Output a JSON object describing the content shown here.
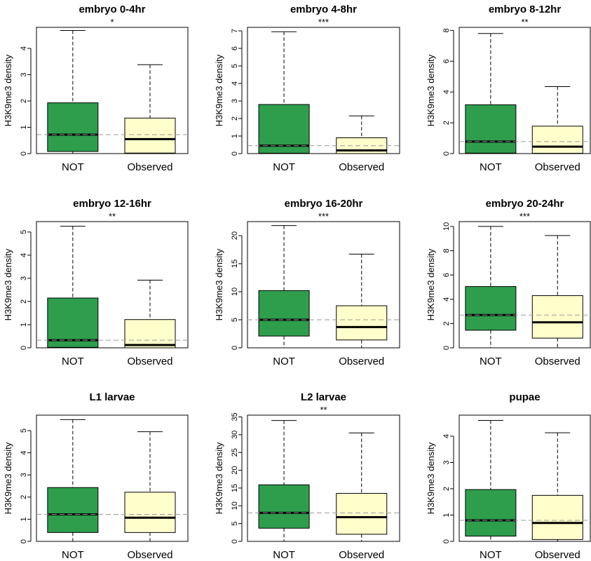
{
  "colors": {
    "not": "#2e9e4d",
    "observed": "#ffffcc",
    "reference_line": "#999999"
  },
  "chart_data": [
    {
      "type": "box",
      "title": "embryo 0-4hr",
      "significance": "*",
      "ylabel": "H3K9me3 density",
      "categories": [
        "NOT",
        "Observed"
      ],
      "yticks": [
        0,
        1,
        2,
        3,
        4
      ],
      "ylim": [
        0,
        4.8
      ],
      "reference_line": 0.72,
      "boxes": [
        {
          "name": "NOT",
          "min": 0,
          "q1": 0.08,
          "median": 0.72,
          "q3": 1.93,
          "max": 4.68
        },
        {
          "name": "Observed",
          "min": 0,
          "q1": 0.02,
          "median": 0.55,
          "q3": 1.35,
          "max": 3.38
        }
      ]
    },
    {
      "type": "box",
      "title": "embryo 4-8hr",
      "significance": "***",
      "ylabel": "H3K9me3 density",
      "categories": [
        "NOT",
        "Observed"
      ],
      "yticks": [
        0,
        1,
        2,
        3,
        4,
        5,
        6,
        7
      ],
      "ylim": [
        0,
        7.2
      ],
      "reference_line": 0.45,
      "boxes": [
        {
          "name": "NOT",
          "min": 0,
          "q1": 0.02,
          "median": 0.45,
          "q3": 2.8,
          "max": 6.95
        },
        {
          "name": "Observed",
          "min": 0,
          "q1": 0.0,
          "median": 0.18,
          "q3": 0.9,
          "max": 2.15
        }
      ]
    },
    {
      "type": "box",
      "title": "embryo 8-12hr",
      "significance": "**",
      "ylabel": "H3K9me3 density",
      "categories": [
        "NOT",
        "Observed"
      ],
      "yticks": [
        0,
        2,
        4,
        6,
        8
      ],
      "ylim": [
        0,
        8.2
      ],
      "reference_line": 0.78,
      "boxes": [
        {
          "name": "NOT",
          "min": 0,
          "q1": 0.03,
          "median": 0.78,
          "q3": 3.17,
          "max": 7.8
        },
        {
          "name": "Observed",
          "min": 0,
          "q1": 0.02,
          "median": 0.45,
          "q3": 1.78,
          "max": 4.35
        }
      ]
    },
    {
      "type": "box",
      "title": "embryo 12-16hr",
      "significance": "**",
      "ylabel": "H3K9me3 density",
      "categories": [
        "NOT",
        "Observed"
      ],
      "yticks": [
        0,
        1,
        2,
        3,
        4,
        5
      ],
      "ylim": [
        0,
        5.45
      ],
      "reference_line": 0.33,
      "boxes": [
        {
          "name": "NOT",
          "min": 0,
          "q1": 0.02,
          "median": 0.33,
          "q3": 2.15,
          "max": 5.25
        },
        {
          "name": "Observed",
          "min": 0,
          "q1": 0.0,
          "median": 0.12,
          "q3": 1.22,
          "max": 2.92
        }
      ]
    },
    {
      "type": "box",
      "title": "embryo 16-20hr",
      "significance": "***",
      "ylabel": "H3K9me3 density",
      "categories": [
        "NOT",
        "Observed"
      ],
      "yticks": [
        0,
        5,
        10,
        15,
        20
      ],
      "ylim": [
        0,
        22.5
      ],
      "reference_line": 5.0,
      "boxes": [
        {
          "name": "NOT",
          "min": 0,
          "q1": 2.1,
          "median": 5.0,
          "q3": 10.2,
          "max": 21.8
        },
        {
          "name": "Observed",
          "min": 0,
          "q1": 1.4,
          "median": 3.7,
          "q3": 7.5,
          "max": 16.7
        }
      ]
    },
    {
      "type": "box",
      "title": "embryo 20-24hr",
      "significance": "***",
      "ylabel": "H3K9me3 density",
      "categories": [
        "NOT",
        "Observed"
      ],
      "yticks": [
        0,
        2,
        4,
        6,
        8,
        10
      ],
      "ylim": [
        0,
        10.4
      ],
      "reference_line": 2.7,
      "boxes": [
        {
          "name": "NOT",
          "min": 0,
          "q1": 1.45,
          "median": 2.7,
          "q3": 5.05,
          "max": 10.0
        },
        {
          "name": "Observed",
          "min": 0,
          "q1": 0.8,
          "median": 2.1,
          "q3": 4.3,
          "max": 9.25
        }
      ]
    },
    {
      "type": "box",
      "title": "L1 larvae",
      "significance": "",
      "ylabel": "H3K9me3 density",
      "categories": [
        "NOT",
        "Observed"
      ],
      "yticks": [
        0,
        1,
        2,
        3,
        4,
        5
      ],
      "ylim": [
        0,
        5.7
      ],
      "reference_line": 1.22,
      "boxes": [
        {
          "name": "NOT",
          "min": 0,
          "q1": 0.4,
          "median": 1.22,
          "q3": 2.43,
          "max": 5.5
        },
        {
          "name": "Observed",
          "min": 0,
          "q1": 0.4,
          "median": 1.07,
          "q3": 2.22,
          "max": 4.95
        }
      ]
    },
    {
      "type": "box",
      "title": "L2 larvae",
      "significance": "**",
      "ylabel": "H3K9me3 density",
      "categories": [
        "NOT",
        "Observed"
      ],
      "yticks": [
        0,
        5,
        10,
        15,
        20,
        25,
        30,
        35
      ],
      "ylim": [
        0,
        35.5
      ],
      "reference_line": 8.0,
      "boxes": [
        {
          "name": "NOT",
          "min": 0,
          "q1": 3.7,
          "median": 8.0,
          "q3": 15.9,
          "max": 34.0
        },
        {
          "name": "Observed",
          "min": 0,
          "q1": 2.0,
          "median": 6.8,
          "q3": 13.5,
          "max": 30.5
        }
      ]
    },
    {
      "type": "box",
      "title": "pupae",
      "significance": "",
      "ylabel": "H3K9me3 density",
      "categories": [
        "NOT",
        "Observed"
      ],
      "yticks": [
        0,
        1,
        2,
        3,
        4
      ],
      "ylim": [
        0,
        4.8
      ],
      "reference_line": 0.8,
      "boxes": [
        {
          "name": "NOT",
          "min": 0,
          "q1": 0.2,
          "median": 0.8,
          "q3": 1.97,
          "max": 4.6
        },
        {
          "name": "Observed",
          "min": 0,
          "q1": 0.07,
          "median": 0.7,
          "q3": 1.75,
          "max": 4.13
        }
      ]
    }
  ]
}
